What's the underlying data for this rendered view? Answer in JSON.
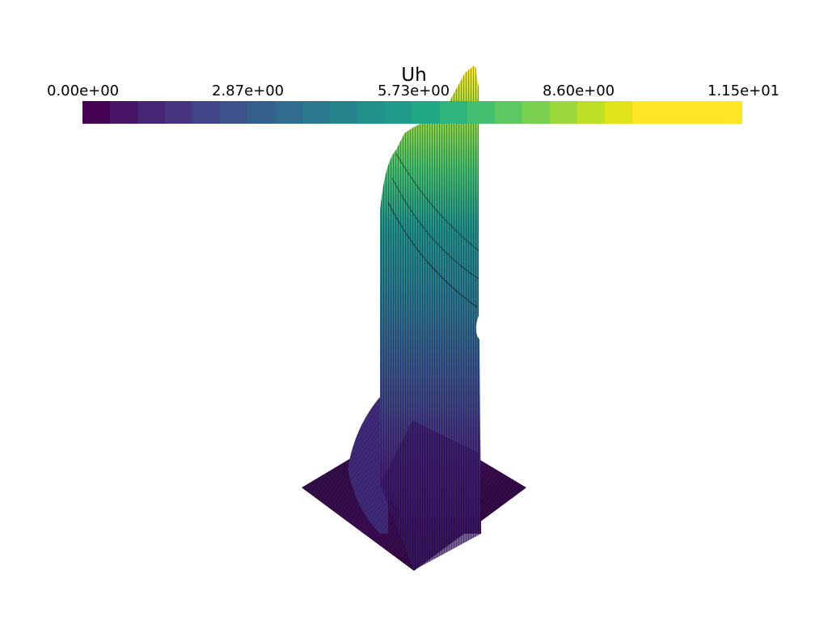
{
  "colorbar": {
    "title": "Uh",
    "tick_labels": [
      "0.00e+00",
      "2.87e+00",
      "5.73e+00",
      "8.60e+00",
      "1.15e+01"
    ],
    "range": [
      0.0,
      11.5
    ],
    "n_colors": 24,
    "colormap": "viridis",
    "colors": [
      "#440154",
      "#471365",
      "#482475",
      "#463480",
      "#414487",
      "#3b528b",
      "#355f8d",
      "#2f6c8e",
      "#2a788e",
      "#25848e",
      "#21918c",
      "#1e9c89",
      "#22a884",
      "#2fb47c",
      "#44bf70",
      "#5ec962",
      "#7ad151",
      "#9bd93c",
      "#bddf26",
      "#dfe318",
      "#fde725",
      "#fde725",
      "#fde725",
      "#fde725"
    ]
  },
  "render": {
    "edge_color": "#000000",
    "background": "#ffffff",
    "scalar_name": "Uh"
  }
}
